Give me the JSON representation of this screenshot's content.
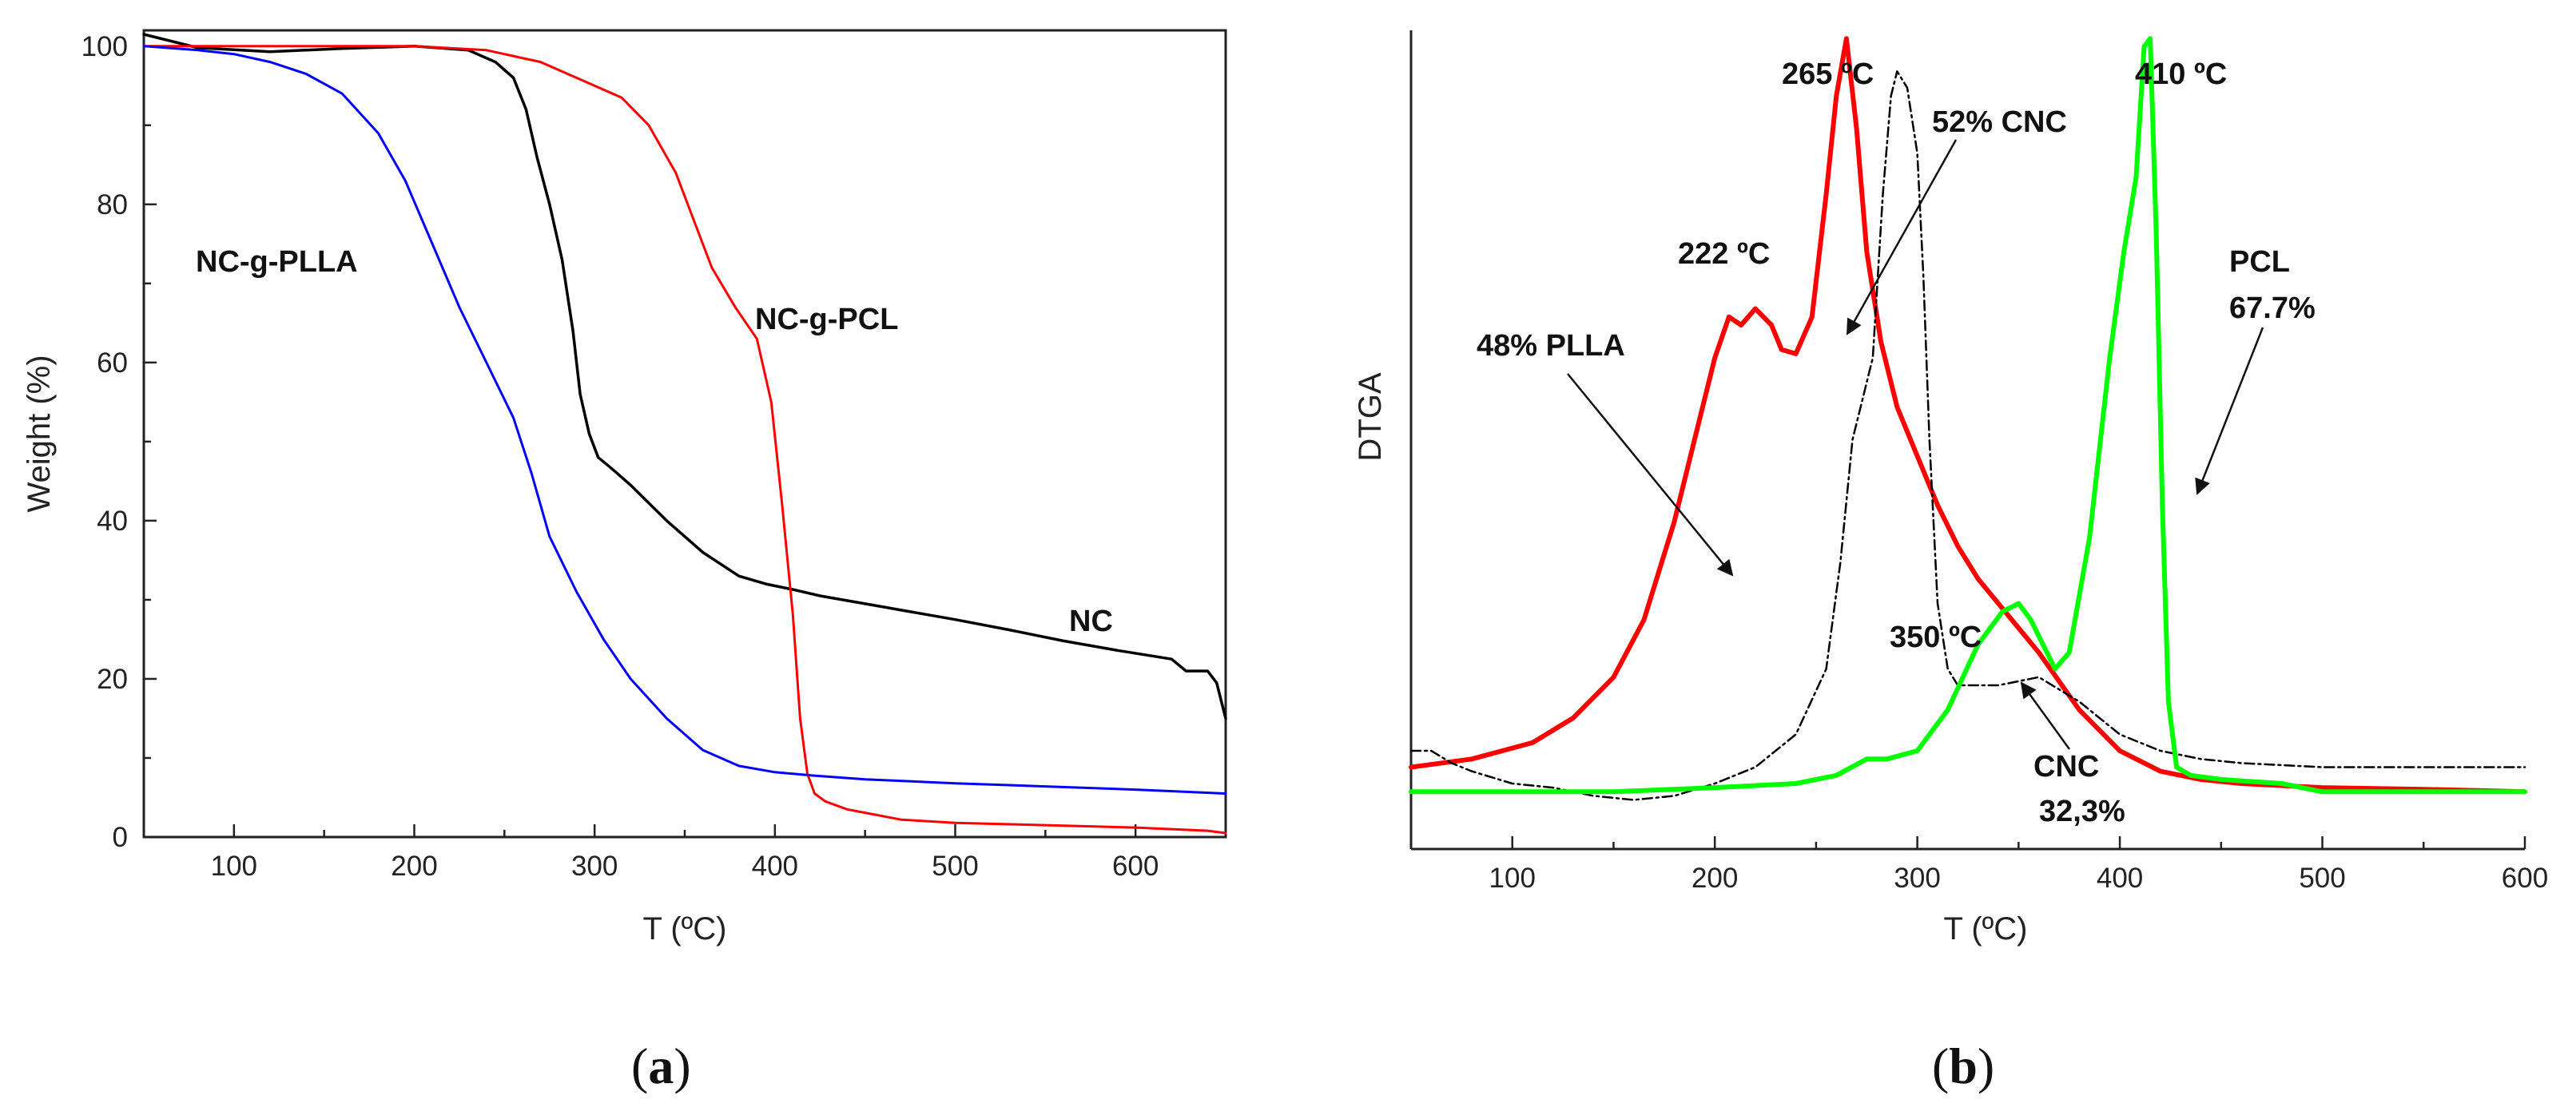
{
  "chart_data": [
    {
      "type": "line",
      "panel_label": "(a)",
      "panel_label_parts": [
        "(",
        "a",
        ")"
      ],
      "xlabel": "T (ºC)",
      "ylabel": "Weight (%)",
      "xlim": [
        50,
        650
      ],
      "ylim": [
        0,
        102
      ],
      "xticks": [
        100,
        200,
        300,
        400,
        500,
        600
      ],
      "yticks": [
        0,
        20,
        40,
        60,
        80,
        100
      ],
      "grid": false,
      "series": [
        {
          "name": "NC",
          "color": "#000000",
          "x": [
            50,
            80,
            120,
            160,
            200,
            230,
            245,
            255,
            262,
            268,
            275,
            282,
            288,
            292,
            297,
            302,
            310,
            320,
            340,
            360,
            380,
            395,
            410,
            425,
            450,
            480,
            500,
            530,
            560,
            590,
            620,
            628,
            640,
            645,
            650
          ],
          "y": [
            101.5,
            99.8,
            99.3,
            99.7,
            100,
            99.5,
            98,
            96,
            92,
            86,
            80,
            73,
            64,
            56,
            51,
            48,
            46.5,
            44.5,
            40,
            36,
            33,
            32,
            31.3,
            30.5,
            29.5,
            28.3,
            27.5,
            26.2,
            24.8,
            23.6,
            22.5,
            21,
            21,
            19.5,
            15
          ]
        },
        {
          "name": "NC-g-PCL",
          "color": "#ff0000",
          "x": [
            50,
            150,
            200,
            240,
            270,
            295,
            315,
            330,
            345,
            355,
            365,
            378,
            390,
            398,
            404,
            410,
            414,
            418,
            422,
            428,
            440,
            470,
            500,
            550,
            600,
            640,
            650
          ],
          "y": [
            100,
            100,
            100,
            99.5,
            98,
            95.5,
            93.5,
            90,
            84,
            78,
            72,
            67,
            63,
            55,
            42,
            28,
            15,
            8,
            5.5,
            4.5,
            3.5,
            2.2,
            1.8,
            1.5,
            1.2,
            0.8,
            0.5
          ]
        },
        {
          "name": "NC-g-PLLA",
          "color": "#0000ff",
          "x": [
            50,
            80,
            100,
            120,
            140,
            160,
            180,
            195,
            210,
            225,
            240,
            255,
            265,
            275,
            290,
            305,
            320,
            340,
            360,
            380,
            400,
            420,
            450,
            500,
            550,
            600,
            650
          ],
          "y": [
            100,
            99.5,
            99,
            98,
            96.5,
            94,
            89,
            83,
            75,
            67,
            60,
            53,
            46,
            38,
            31,
            25,
            20,
            15,
            11,
            9,
            8.2,
            7.8,
            7.3,
            6.8,
            6.4,
            6.0,
            5.5
          ]
        }
      ],
      "annotations": [
        {
          "text": "NC-g-PLLA",
          "target_series": "NC-g-PLLA"
        },
        {
          "text": "NC-g-PCL",
          "target_series": "NC-g-PCL"
        },
        {
          "text": "NC",
          "target_series": "NC"
        }
      ]
    },
    {
      "type": "line",
      "panel_label": "(b)",
      "panel_label_parts": [
        "(",
        "b",
        ")"
      ],
      "xlabel": "T (ºC)",
      "ylabel": "DTGA",
      "xlim": [
        50,
        600
      ],
      "ylim": [
        0,
        100
      ],
      "xticks": [
        100,
        200,
        300,
        400,
        500,
        600
      ],
      "yticks": [],
      "grid": false,
      "series": [
        {
          "name": "NC-g-PLLA",
          "color": "#ff0000",
          "x": [
            50,
            80,
            110,
            130,
            150,
            165,
            180,
            190,
            200,
            207,
            213,
            220,
            228,
            233,
            240,
            248,
            255,
            260,
            265,
            270,
            275,
            282,
            290,
            300,
            310,
            320,
            330,
            340,
            350,
            360,
            380,
            400,
            420,
            440,
            460,
            500,
            550,
            600
          ],
          "y": [
            10,
            11,
            13,
            16,
            21,
            28,
            40,
            50,
            60,
            65,
            64,
            66,
            64,
            61,
            60.5,
            65,
            80,
            92,
            99,
            88,
            73,
            62,
            54,
            48,
            42,
            37,
            33,
            30,
            27,
            24,
            17,
            12,
            9.5,
            8.5,
            8,
            7.5,
            7.3,
            7
          ]
        },
        {
          "name": "NC (CNC)",
          "color": "#000000",
          "dashed": true,
          "x": [
            50,
            60,
            70,
            80,
            100,
            120,
            140,
            160,
            180,
            200,
            220,
            240,
            255,
            262,
            268,
            273,
            278,
            283,
            287,
            290,
            295,
            300,
            303,
            306,
            310,
            315,
            320,
            330,
            340,
            360,
            380,
            400,
            420,
            440,
            460,
            500,
            550,
            600
          ],
          "y": [
            12,
            12,
            10.5,
            9.5,
            8,
            7.5,
            6.5,
            6,
            6.5,
            8,
            10,
            14,
            22,
            35,
            50,
            55,
            60,
            80,
            92,
            95,
            93,
            85,
            70,
            50,
            30,
            22,
            20,
            20,
            20,
            21,
            18,
            14,
            12,
            11,
            10.5,
            10,
            10,
            10
          ]
        },
        {
          "name": "NC-g-PCL",
          "color": "#00ff00",
          "x": [
            50,
            100,
            150,
            200,
            240,
            260,
            275,
            285,
            300,
            315,
            330,
            342,
            350,
            356,
            362,
            368,
            375,
            385,
            395,
            402,
            408,
            412,
            415,
            418,
            421,
            424,
            428,
            435,
            450,
            480,
            500,
            550,
            600
          ],
          "y": [
            7,
            7,
            7,
            7.5,
            8,
            9,
            11,
            11,
            12,
            17,
            25,
            29,
            30,
            28,
            25,
            22,
            24,
            38,
            60,
            73,
            82,
            98,
            99,
            75,
            42,
            18,
            10,
            9,
            8.5,
            8,
            7,
            7,
            7
          ]
        }
      ],
      "annotations": [
        {
          "text": "265 ºC",
          "target_series": "NC-g-PLLA"
        },
        {
          "text": "222 ºC",
          "target_series": "NC-g-PLLA"
        },
        {
          "text": "52% CNC",
          "target_series": "NC (CNC)"
        },
        {
          "text": "48% PLLA",
          "target_series": "NC-g-PLLA"
        },
        {
          "text": "410 ºC",
          "target_series": "NC-g-PCL"
        },
        {
          "text": "PCL",
          "target_series": "NC-g-PCL"
        },
        {
          "text": "67.7%",
          "target_series": "NC-g-PCL"
        },
        {
          "text": "350 ºC",
          "target_series": "NC-g-PCL"
        },
        {
          "text": "CNC",
          "target_series": "NC-g-PCL"
        },
        {
          "text": "32,3%",
          "target_series": "NC-g-PCL"
        }
      ]
    }
  ]
}
